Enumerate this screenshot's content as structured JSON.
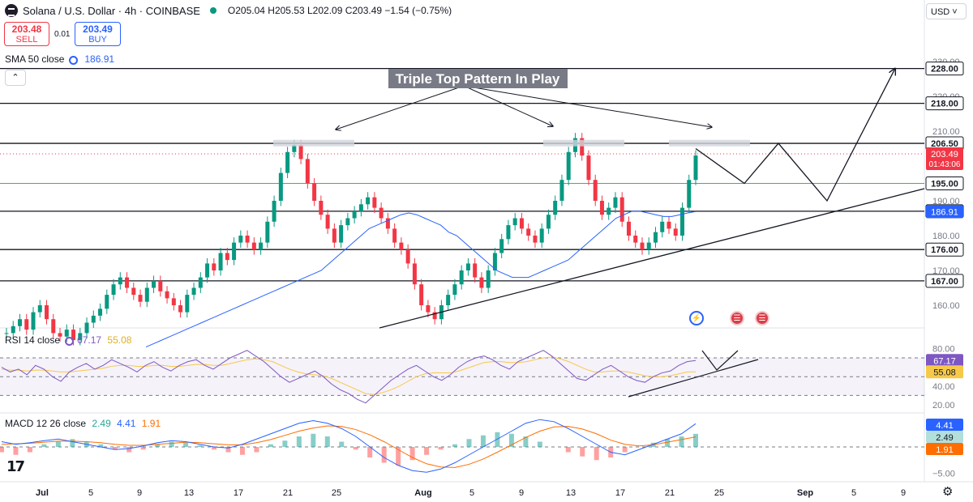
{
  "header": {
    "symbol": "Solana / U.S. Dollar · 4h · COINBASE",
    "ohlc": "O205.04  H205.53  L202.09  C203.49  −1.54 (−0.75%)"
  },
  "trade": {
    "sell_price": "203.48",
    "sell_label": "SELL",
    "spread": "0.01",
    "buy_price": "203.49",
    "buy_label": "BUY"
  },
  "currency": "USD",
  "collapse_icon": "chevron-up-icon",
  "indicators": {
    "sma_label": "SMA 50 close",
    "sma_value": "186.91",
    "rsi_label": "RSI 14 close",
    "rsi_value": "67.17",
    "rsi_ma_value": "55.08",
    "macd_label": "MACD 12 26 close",
    "macd_hist": "2.49",
    "macd_line": "4.41",
    "macd_signal": "1.91"
  },
  "annotation": "Triple Top Pattern In Play",
  "colors": {
    "up": "#089981",
    "down": "#f23645",
    "sma": "#2962ff",
    "rsi": "#7e57c2",
    "rsi_ma": "#f7c948",
    "macd_line": "#2962ff",
    "macd_signal": "#ff6d00",
    "support_green": "#4caf50"
  },
  "chart_data": [
    {
      "type": "candlestick",
      "title": "Solana / U.S. Dollar · 4h · COINBASE",
      "x_ticks": [
        "Jul",
        "5",
        "9",
        "13",
        "17",
        "21",
        "25",
        "Aug",
        "5",
        "9",
        "13",
        "17",
        "21",
        "25",
        "Sep",
        "5",
        "9"
      ],
      "y_ticks": [
        160,
        170,
        180,
        190,
        200,
        210,
        220,
        230
      ],
      "ylim": [
        150,
        234
      ],
      "horizontal_levels": [
        {
          "label": "228.00",
          "value": 228
        },
        {
          "label": "218.00",
          "value": 218
        },
        {
          "label": "206.50",
          "value": 206.5
        },
        {
          "label": "195.00",
          "value": 195,
          "color": "green"
        },
        {
          "label": "187.00",
          "value": 187
        },
        {
          "label": "176.00",
          "value": 176
        },
        {
          "label": "167.00",
          "value": 167
        }
      ],
      "price_tags": [
        {
          "label": "203.49",
          "sub": "01:43:06",
          "value": 203.49,
          "kind": "last"
        },
        {
          "label": "186.91",
          "value": 186.91,
          "kind": "sma"
        }
      ],
      "closes": [
        152,
        154,
        156,
        153,
        158,
        160,
        156,
        152,
        151,
        153,
        150,
        152,
        155,
        157,
        159,
        163,
        166,
        168,
        165,
        163,
        161,
        165,
        167,
        164,
        162,
        160,
        158,
        163,
        165,
        168,
        172,
        170,
        175,
        173,
        178,
        180,
        178,
        176,
        178,
        184,
        190,
        198,
        204,
        206,
        202,
        195,
        190,
        186,
        182,
        178,
        183,
        185,
        187,
        189,
        191,
        188,
        185,
        182,
        178,
        176,
        172,
        166,
        160,
        158,
        156,
        160,
        163,
        166,
        170,
        172,
        168,
        165,
        170,
        175,
        179,
        183,
        185,
        182,
        180,
        178,
        182,
        186,
        190,
        196,
        204,
        208,
        203,
        196,
        190,
        186,
        188,
        191,
        184,
        180,
        178,
        176,
        178,
        181,
        184,
        182,
        180,
        188,
        196,
        203
      ],
      "sma50": [
        148,
        149,
        150,
        151,
        152,
        153,
        154,
        155,
        156,
        157,
        158,
        159,
        160,
        161,
        162,
        163,
        164,
        165,
        166,
        167,
        168,
        169,
        170,
        172,
        174,
        176,
        178,
        180,
        182,
        183,
        184,
        185,
        186,
        186.5,
        186,
        185,
        184,
        183,
        181,
        180,
        178,
        176,
        174,
        172,
        170,
        169,
        168,
        168,
        168,
        169,
        170,
        171,
        172,
        173,
        175,
        177,
        179,
        181,
        183,
        185,
        186,
        187,
        187,
        186.5,
        186,
        185.5,
        185.5,
        186,
        186.5,
        186.91
      ],
      "projection": [
        [
          206,
          205
        ],
        [
          217,
          195
        ],
        [
          226,
          206.5
        ],
        [
          237,
          190
        ],
        [
          251,
          228
        ]
      ]
    },
    {
      "type": "line",
      "title": "RSI 14 close",
      "y_ticks": [
        20,
        40,
        60,
        80
      ],
      "ylim": [
        10,
        90
      ],
      "band": [
        30,
        70
      ],
      "midline": 50,
      "series": [
        {
          "name": "RSI",
          "values": [
            60,
            55,
            58,
            52,
            62,
            58,
            50,
            45,
            55,
            60,
            64,
            58,
            62,
            68,
            64,
            60,
            55,
            62,
            66,
            60,
            56,
            62,
            66,
            68,
            62,
            58,
            64,
            70,
            74,
            78,
            72,
            66,
            58,
            50,
            44,
            48,
            52,
            56,
            50,
            42,
            36,
            32,
            26,
            22,
            30,
            38,
            46,
            52,
            58,
            62,
            56,
            50,
            46,
            52,
            60,
            66,
            70,
            72,
            68,
            62,
            58,
            66,
            70,
            74,
            78,
            72,
            64,
            56,
            48,
            46,
            52,
            58,
            62,
            56,
            50,
            46,
            44,
            50,
            54,
            56,
            62,
            66,
            67.17
          ]
        },
        {
          "name": "RSI MA",
          "values": [
            58,
            57,
            57,
            56,
            57,
            57,
            56,
            55,
            55,
            56,
            57,
            58,
            59,
            61,
            62,
            62,
            61,
            61,
            62,
            62,
            61,
            61,
            62,
            63,
            63,
            62,
            62,
            64,
            66,
            68,
            69,
            68,
            66,
            62,
            58,
            55,
            53,
            52,
            51,
            48,
            44,
            40,
            36,
            32,
            31,
            33,
            36,
            40,
            45,
            50,
            53,
            54,
            54,
            54,
            56,
            59,
            62,
            65,
            66,
            66,
            65,
            65,
            66,
            68,
            70,
            71,
            69,
            66,
            62,
            58,
            55,
            55,
            56,
            56,
            55,
            53,
            51,
            50,
            50,
            51,
            53,
            55,
            55.08
          ]
        }
      ],
      "projection": [
        [
          0,
          66
        ],
        [
          5,
          52
        ],
        [
          10,
          68
        ]
      ]
    },
    {
      "type": "bar+line",
      "title": "MACD 12 26 close",
      "y_ticks": [
        -5
      ],
      "ylim": [
        -7,
        8
      ],
      "histogram": [
        -1,
        -1.5,
        -1,
        0.5,
        1,
        1.5,
        1,
        0.5,
        -0.5,
        -1,
        -0.5,
        0.5,
        1,
        0.8,
        0.3,
        -0.5,
        -1,
        -1.5,
        -1,
        0.5,
        1.2,
        2,
        2.5,
        2,
        1,
        -0.5,
        -2,
        -3,
        -3.5,
        -2.5,
        -1.5,
        -0.5,
        0.5,
        1.5,
        2.2,
        2.8,
        2.5,
        2,
        1,
        0,
        -1,
        -1.8,
        -2.5,
        -2,
        -1,
        0,
        0.8,
        1.5,
        2,
        2.49
      ],
      "macd_line": [
        1,
        0.5,
        0.8,
        1.2,
        1.5,
        1,
        0.5,
        0,
        -0.5,
        -0.3,
        0.2,
        0.8,
        1.2,
        1,
        0.5,
        0,
        -0.2,
        0.5,
        1.5,
        2.5,
        3.5,
        4.5,
        5,
        4.5,
        3.5,
        2,
        0,
        -2,
        -3.5,
        -4.5,
        -4.8,
        -4.2,
        -3,
        -1.5,
        0,
        1.5,
        3,
        4.5,
        5.2,
        4.8,
        3.5,
        2,
        0.5,
        -1,
        -1.5,
        -0.5,
        0.5,
        1.5,
        2.5,
        4.41
      ],
      "signal_line": [
        0.5,
        0.6,
        0.7,
        0.9,
        1.1,
        1.1,
        1,
        0.8,
        0.5,
        0.3,
        0.3,
        0.5,
        0.7,
        0.9,
        0.8,
        0.6,
        0.4,
        0.4,
        0.8,
        1.4,
        2.2,
        3,
        3.6,
        4,
        3.9,
        3.3,
        2.3,
        1,
        -0.5,
        -2,
        -3.2,
        -3.8,
        -3.9,
        -3.3,
        -2.3,
        -1,
        0.4,
        1.8,
        3,
        3.8,
        3.9,
        3.4,
        2.5,
        1.3,
        0.5,
        0.2,
        0.4,
        0.9,
        1.4,
        1.91
      ]
    }
  ]
}
